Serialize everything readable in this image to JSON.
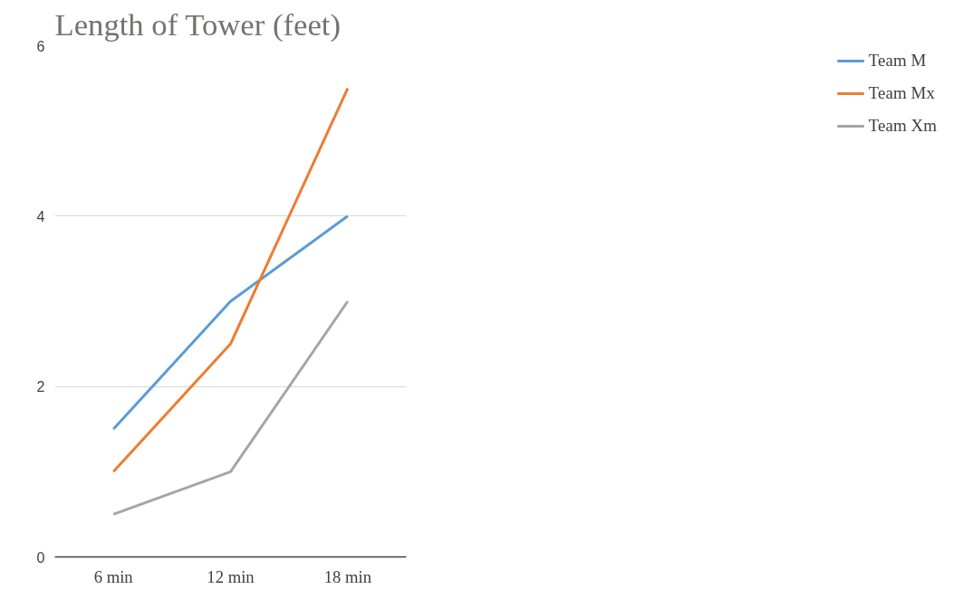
{
  "chart_data": {
    "type": "line",
    "title": "Length of Tower (feet)",
    "categories": [
      "6 min",
      "12 min",
      "18 min"
    ],
    "series": [
      {
        "name": "Team M",
        "color": "#5b9bd5",
        "values": [
          1.5,
          3,
          4
        ]
      },
      {
        "name": "Team Mx",
        "color": "#ed7d31",
        "values": [
          1,
          2.5,
          5.5
        ]
      },
      {
        "name": "Team Xm",
        "color": "#a5a5a5",
        "values": [
          0.5,
          1,
          3
        ]
      }
    ],
    "ylim": [
      0,
      6
    ],
    "yticks": [
      0,
      2,
      4,
      6
    ],
    "grid": "y",
    "legend": "right",
    "marker": "none",
    "line_style": "solid"
  }
}
